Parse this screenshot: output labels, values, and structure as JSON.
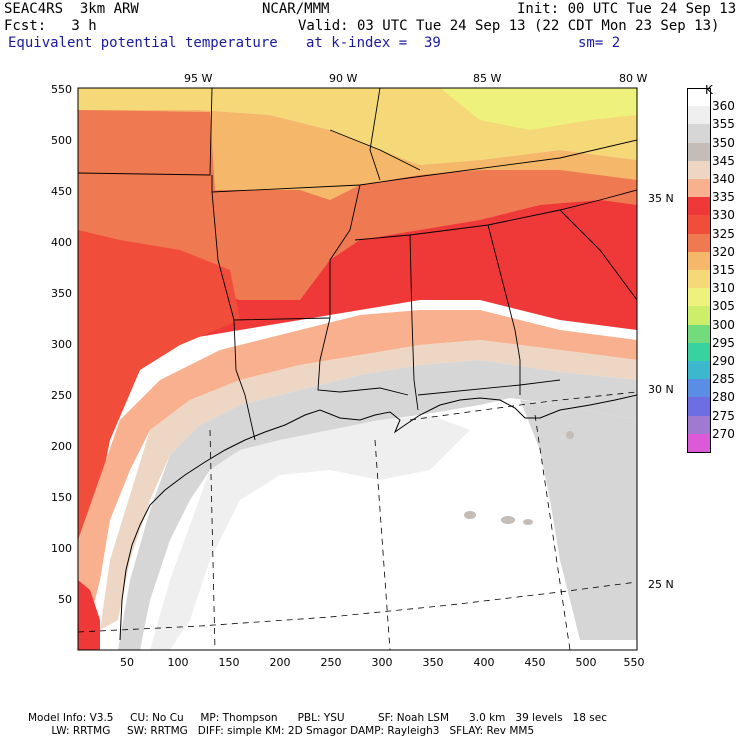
{
  "header": {
    "model": "SEAC4RS  3km ARW",
    "org": "NCAR/MMM",
    "init": "Init: 00 UTC Tue 24 Sep 13",
    "fcst": "Fcst:   3 h",
    "valid": "Valid: 03 UTC Tue 24 Sep 13 (22 CDT Mon 23 Sep 13)",
    "field": "Equivalent potential temperature",
    "level": "at k-index =  39",
    "smooth": "sm= 2"
  },
  "axes": {
    "x_ticks": [
      "50",
      "100",
      "150",
      "200",
      "250",
      "300",
      "350",
      "400",
      "450",
      "500",
      "550"
    ],
    "y_ticks": [
      "550",
      "500",
      "450",
      "400",
      "350",
      "300",
      "250",
      "200",
      "150",
      "100",
      "50"
    ],
    "lon_labels": [
      "95 W",
      "90 W",
      "85 W",
      "80 W"
    ],
    "lat_labels": [
      "35 N",
      "30 N",
      "25 N"
    ]
  },
  "colorbar": {
    "unit": "K",
    "levels": [
      "360",
      "355",
      "350",
      "345",
      "340",
      "335",
      "330",
      "325",
      "320",
      "315",
      "310",
      "305",
      "300",
      "295",
      "290",
      "285",
      "280",
      "275",
      "270"
    ],
    "colors": [
      "#ffffff",
      "#efefef",
      "#d6d6d6",
      "#c4bcb6",
      "#eed6c4",
      "#f8b08e",
      "#ef3838",
      "#f04e3a",
      "#ef7a52",
      "#f5b86a",
      "#f5d878",
      "#eef27c",
      "#ccee6a",
      "#72dc7c",
      "#38d2a0",
      "#3cb8ce",
      "#5a8ee4",
      "#6e6ee4",
      "#a07ad0",
      "#dc5ad8"
    ]
  },
  "footer": {
    "line1": "Model Info: V3.5     CU: No Cu     MP: Thompson      PBL: YSU          SF: Noah LSM      3.0 km   39 levels   18 sec",
    "line2": "       LW: RRTMG     SW: RRTMG   DIFF: simple KM: 2D Smagor DAMP: Rayleigh3   SFLAY: Rev MM5"
  }
}
